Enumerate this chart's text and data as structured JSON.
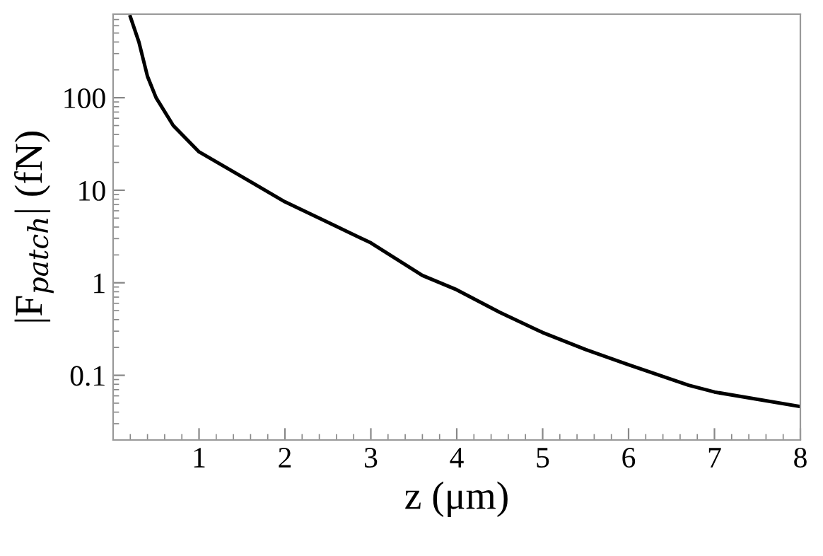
{
  "chart_data": {
    "type": "line",
    "xlabel": "z (μm)",
    "ylabel": "|F$_{patch}$| (fN)",
    "log": "y",
    "xlim": [
      0,
      8
    ],
    "ylim": [
      0.02,
      800
    ],
    "xticks": [
      1,
      2,
      3,
      4,
      5,
      6,
      7,
      8
    ],
    "yticks": [
      0.1,
      1,
      10,
      100
    ],
    "grid": false,
    "legend": false,
    "marker": "none",
    "line_style": "solid",
    "series": [
      {
        "color": "#000000",
        "x": [
          0.2,
          0.3,
          0.4,
          0.5,
          0.7,
          1,
          1.5,
          2,
          2.5,
          3,
          3.6,
          4,
          4.5,
          5,
          5.5,
          6,
          6.7,
          7,
          8
        ],
        "values": [
          750,
          400,
          170,
          100,
          50,
          26,
          14,
          7.5,
          4.5,
          2.7,
          1.2,
          0.84,
          0.48,
          0.29,
          0.19,
          0.13,
          0.078,
          0.066,
          0.046
        ]
      }
    ]
  }
}
